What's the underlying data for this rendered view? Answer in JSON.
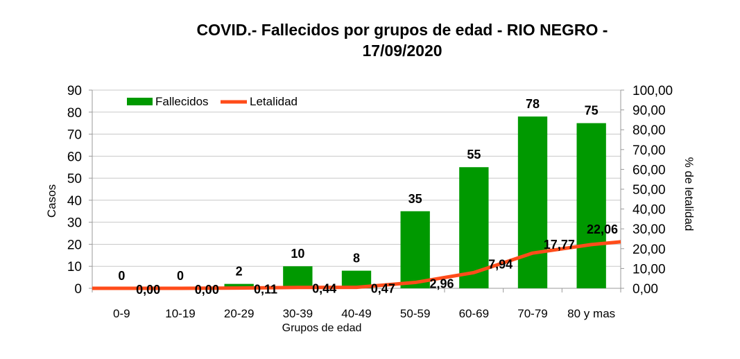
{
  "chart_data": {
    "type": "bar",
    "title": "COVID.- Fallecidos por grupos de edad - RIO NEGRO - 17/09/2020",
    "title_lines": [
      "COVID.- Fallecidos por grupos de edad - RIO NEGRO -",
      "17/09/2020"
    ],
    "xlabel": "Grupos de edad",
    "ylabel": "Casos",
    "y2label": "% de letalidad",
    "categories": [
      "0-9",
      "10-19",
      "20-29",
      "30-39",
      "40-49",
      "50-59",
      "60-69",
      "70-79",
      "80 y mas"
    ],
    "ylim": [
      0,
      90
    ],
    "y2lim": [
      0,
      100
    ],
    "yticks": [
      "0",
      "10",
      "20",
      "30",
      "40",
      "50",
      "60",
      "70",
      "80",
      "90"
    ],
    "y2ticks": [
      "0,00",
      "10,00",
      "20,00",
      "30,00",
      "40,00",
      "50,00",
      "60,00",
      "70,00",
      "80,00",
      "90,00",
      "100,00"
    ],
    "legend_position": "top-left",
    "series": [
      {
        "name": "Fallecidos",
        "type": "bar",
        "axis": "left",
        "color": "#009900",
        "values": [
          0,
          0,
          2,
          10,
          8,
          35,
          55,
          78,
          75
        ],
        "labels": [
          "0",
          "0",
          "2",
          "10",
          "8",
          "35",
          "55",
          "78",
          "75"
        ]
      },
      {
        "name": "Letalidad",
        "type": "line",
        "axis": "right",
        "color": "#ff4c1a",
        "values": [
          0.0,
          0.0,
          0.11,
          0.44,
          0.47,
          2.96,
          7.94,
          17.77,
          22.06
        ],
        "labels": [
          "0,00",
          "0,00",
          "0,11",
          "0,44",
          "0,47",
          "2,96",
          "7,94",
          "17,77",
          "22,06"
        ]
      }
    ]
  }
}
